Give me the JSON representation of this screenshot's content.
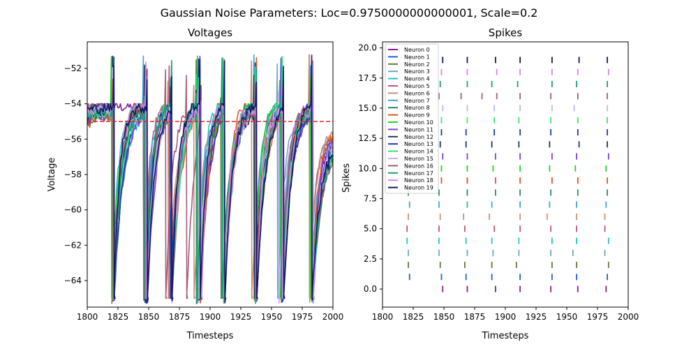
{
  "figure": {
    "suptitle": "Gaussian Noise Parameters: Loc=0.9750000000000001, Scale=0.2"
  },
  "chart_data": [
    {
      "type": "line",
      "title": "Voltages",
      "xlabel": "Timesteps",
      "ylabel": "Voltage",
      "xlim": [
        1800,
        2000
      ],
      "ylim": [
        -65.5,
        -50.5
      ],
      "xticks": [
        1800,
        1825,
        1850,
        1875,
        1900,
        1925,
        1950,
        1975,
        2000
      ],
      "yticks": [
        -64,
        -62,
        -60,
        -58,
        -56,
        -54,
        -52
      ],
      "threshold": -55,
      "reset": -65,
      "threshold_color": "#d62728",
      "spike_times": [
        [
          1849,
          1869,
          1892,
          1912,
          1937,
          1959,
          1982
        ],
        [
          1822,
          1848,
          1868,
          1889,
          1912,
          1938,
          1958,
          1983
        ],
        [
          1821,
          1847,
          1867,
          1889,
          1909,
          1938,
          1958,
          1984
        ],
        [
          1821,
          1846,
          1869,
          1890,
          1911,
          1937,
          1955,
          1981
        ],
        [
          1820,
          1846,
          1868,
          1889,
          1911,
          1938,
          1958,
          1984
        ],
        [
          1820,
          1846,
          1867,
          1891,
          1912,
          1937,
          1958,
          1981
        ],
        [
          1821,
          1847,
          1866,
          1887,
          1912,
          1934,
          1958,
          1981
        ],
        [
          1822,
          1846,
          1869,
          1889,
          1912,
          1936,
          1958,
          1982
        ],
        [
          1821,
          1846,
          1869,
          1892,
          1912,
          1937,
          1959,
          1983
        ],
        [
          1822,
          1848,
          1869,
          1892,
          1912,
          1938,
          1959,
          1983
        ],
        [
          1820,
          1848,
          1869,
          1890,
          1912,
          1936,
          1957,
          1982
        ],
        [
          1822,
          1849,
          1869,
          1892,
          1912,
          1938,
          1958,
          1984
        ],
        [
          1821,
          1847,
          1868,
          1889,
          1911,
          1936,
          1960,
          1983
        ],
        [
          1822,
          1848,
          1868,
          1891,
          1912,
          1937,
          1959,
          1983
        ],
        [
          1821,
          1848,
          1869,
          1891,
          1911,
          1937,
          1959,
          1983
        ],
        [
          1821,
          1849,
          1869,
          1891,
          1912,
          1938,
          1956,
          1983
        ],
        [
          1821,
          1846,
          1864,
          1881,
          1893,
          1912,
          1937,
          1959,
          1983
        ],
        [
          1822,
          1847,
          1869,
          1889,
          1910,
          1938,
          1958,
          1983
        ],
        [
          1822,
          1848,
          1869,
          1893,
          1912,
          1938,
          1959,
          1984
        ],
        [
          1822,
          1849,
          1869,
          1892,
          1912,
          1938,
          1960,
          1983
        ]
      ]
    },
    {
      "type": "scatter",
      "title": "Spikes",
      "xlabel": "Timesteps",
      "ylabel": "Spikes",
      "xlim": [
        1800,
        2000
      ],
      "ylim": [
        -1.5,
        20.5
      ],
      "xticks": [
        1800,
        1825,
        1850,
        1875,
        1900,
        1925,
        1950,
        1975,
        2000
      ],
      "yticks": [
        0.0,
        2.5,
        5.0,
        7.5,
        10.0,
        12.5,
        15.0,
        17.5,
        20.0
      ],
      "ytick_labels": [
        "0.0",
        "2.5",
        "5.0",
        "7.5",
        "10.0",
        "12.5",
        "15.0",
        "17.5",
        "20.0"
      ],
      "legend_position": "top-left",
      "series": [
        {
          "name": "Neuron 0",
          "color": "#8b1a89",
          "y": 0,
          "x": [
            1849,
            1869,
            1892,
            1912,
            1937,
            1959,
            1982
          ]
        },
        {
          "name": "Neuron 1",
          "color": "#1f5fd6",
          "y": 1,
          "x": [
            1822,
            1848,
            1868,
            1889,
            1912,
            1938,
            1958,
            1983
          ]
        },
        {
          "name": "Neuron 2",
          "color": "#5a7d3c",
          "y": 2,
          "x": [
            1821,
            1847,
            1867,
            1889,
            1909,
            1938,
            1958,
            1984
          ]
        },
        {
          "name": "Neuron 3",
          "color": "#6aa6c8",
          "y": 3,
          "x": [
            1821,
            1846,
            1869,
            1890,
            1911,
            1937,
            1955,
            1981
          ]
        },
        {
          "name": "Neuron 4",
          "color": "#20c4c4",
          "y": 4,
          "x": [
            1820,
            1846,
            1868,
            1889,
            1911,
            1938,
            1958,
            1984
          ]
        },
        {
          "name": "Neuron 5",
          "color": "#c2547a",
          "y": 5,
          "x": [
            1820,
            1846,
            1867,
            1891,
            1912,
            1937,
            1958,
            1981
          ]
        },
        {
          "name": "Neuron 6",
          "color": "#c8907a",
          "y": 6,
          "x": [
            1821,
            1847,
            1866,
            1887,
            1912,
            1934,
            1958,
            1981
          ]
        },
        {
          "name": "Neuron 7",
          "color": "#3aa4dc",
          "y": 7,
          "x": [
            1822,
            1846,
            1869,
            1889,
            1912,
            1936,
            1958,
            1982
          ]
        },
        {
          "name": "Neuron 8",
          "color": "#228b6a",
          "y": 8,
          "x": [
            1821,
            1846,
            1869,
            1892,
            1912,
            1937,
            1959,
            1983
          ]
        },
        {
          "name": "Neuron 9",
          "color": "#e0541c",
          "y": 9,
          "x": [
            1822,
            1848,
            1869,
            1892,
            1912,
            1938,
            1959,
            1983
          ]
        },
        {
          "name": "Neuron 10",
          "color": "#1ed61e",
          "y": 10,
          "x": [
            1820,
            1848,
            1869,
            1890,
            1912,
            1936,
            1957,
            1982
          ]
        },
        {
          "name": "Neuron 11",
          "color": "#7a3ee0",
          "y": 11,
          "x": [
            1822,
            1849,
            1869,
            1892,
            1912,
            1938,
            1958,
            1984
          ]
        },
        {
          "name": "Neuron 12",
          "color": "#1a3a5a",
          "y": 12,
          "x": [
            1821,
            1847,
            1868,
            1889,
            1911,
            1936,
            1960,
            1983
          ]
        },
        {
          "name": "Neuron 13",
          "color": "#1a3ab0",
          "y": 13,
          "x": [
            1822,
            1848,
            1868,
            1891,
            1912,
            1937,
            1959,
            1983
          ]
        },
        {
          "name": "Neuron 14",
          "color": "#3ee07a",
          "y": 14,
          "x": [
            1821,
            1848,
            1869,
            1891,
            1911,
            1937,
            1959,
            1983
          ]
        },
        {
          "name": "Neuron 15",
          "color": "#c6b2f0",
          "y": 15,
          "x": [
            1821,
            1849,
            1869,
            1891,
            1912,
            1938,
            1956,
            1983
          ]
        },
        {
          "name": "Neuron 16",
          "color": "#a8587a",
          "y": 16,
          "x": [
            1821,
            1846,
            1864,
            1881,
            1893,
            1912,
            1937,
            1959,
            1983
          ]
        },
        {
          "name": "Neuron 17",
          "color": "#1a9e7a",
          "y": 17,
          "x": [
            1822,
            1847,
            1869,
            1889,
            1910,
            1938,
            1958,
            1983
          ]
        },
        {
          "name": "Neuron 18",
          "color": "#d088dc",
          "y": 18,
          "x": [
            1822,
            1848,
            1869,
            1893,
            1912,
            1938,
            1959,
            1984
          ]
        },
        {
          "name": "Neuron 19",
          "color": "#141466",
          "y": 19,
          "x": [
            1822,
            1849,
            1869,
            1892,
            1912,
            1938,
            1960,
            1983
          ]
        }
      ]
    }
  ]
}
